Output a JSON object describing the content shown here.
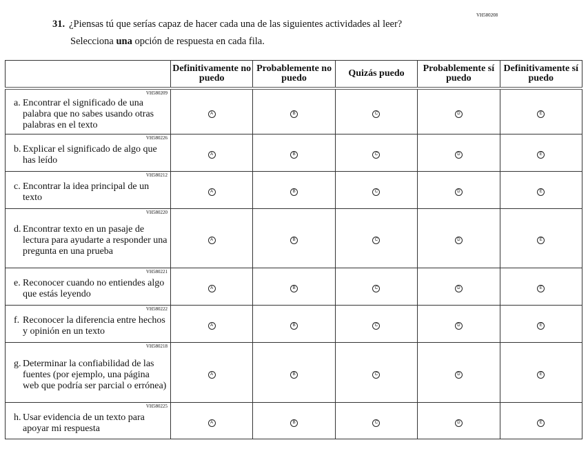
{
  "question": {
    "number": "31.",
    "code": "VH580208",
    "text": "¿Piensas tú que serías capaz de hacer cada una de las siguientes actividades al leer?",
    "instruction_before": "Selecciona ",
    "instruction_bold": "una",
    "instruction_after": " opción de respuesta en cada fila."
  },
  "columns": [
    "Definitivamente no puedo",
    "Probablemente no puedo",
    "Quizás puedo",
    "Probablemente sí puedo",
    "Definitivamente sí puedo"
  ],
  "options": [
    "A",
    "B",
    "C",
    "D",
    "E"
  ],
  "rows": [
    {
      "letter": "a.",
      "text": "Encontrar el significado de una palabra que no sabes usando otras palabras en el texto",
      "code": "VH580209"
    },
    {
      "letter": "b.",
      "text": "Explicar el significado de algo que has leído",
      "code": "VH580226"
    },
    {
      "letter": "c.",
      "text": "Encontrar la idea principal de un texto",
      "code": "VH580212"
    },
    {
      "letter": "d.",
      "text": "Encontrar texto en un pasaje de lectura para ayudarte a responder una pregunta en una prueba",
      "code": "VH580220"
    },
    {
      "letter": "e.",
      "text": "Reconocer cuando no entiendes algo que estás leyendo",
      "code": "VH580221"
    },
    {
      "letter": "f.",
      "text": "Reconocer la diferencia entre hechos y opinión en un texto",
      "code": "VH580222"
    },
    {
      "letter": "g.",
      "text": "Determinar la confiabilidad de las fuentes (por ejemplo, una página web que podría ser parcial o errónea)",
      "code": "VH580218"
    },
    {
      "letter": "h.",
      "text": "Usar evidencia de un texto para apoyar mi respuesta",
      "code": "VH580225"
    }
  ]
}
